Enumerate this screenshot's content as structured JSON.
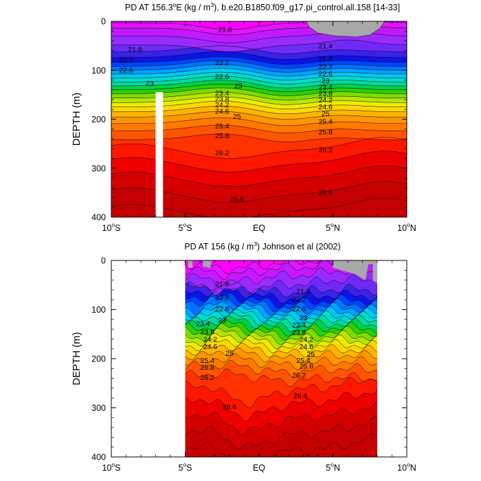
{
  "chart_data": [
    {
      "type": "contour",
      "title": "PD AT 156.3°E (kg / m³), b.e20.B1850.f09_g17.pi_control.all.158 [14-33]",
      "title_parts": {
        "pre": "PD AT 156.3",
        "deg": "o",
        "mid": "E (kg / m",
        "sup": "3",
        "post": "), b.e20.B1850.f09_g17.pi_control.all.158 [14-33]"
      },
      "ylabel": "DEPTH (m)",
      "xlim": [
        -10,
        10
      ],
      "ylim": [
        400,
        0
      ],
      "x_ticks": [
        {
          "v": -10,
          "num": "10",
          "deg": "o",
          "suf": "S"
        },
        {
          "v": -5,
          "num": "5",
          "deg": "o",
          "suf": "S"
        },
        {
          "v": 0,
          "num": "EQ",
          "deg": "",
          "suf": ""
        },
        {
          "v": 5,
          "num": "5",
          "deg": "o",
          "suf": "N"
        },
        {
          "v": 10,
          "num": "10",
          "deg": "o",
          "suf": "N"
        }
      ],
      "y_ticks": [
        {
          "v": 0,
          "label": "0"
        },
        {
          "v": 100,
          "label": "100"
        },
        {
          "v": 200,
          "label": "200"
        },
        {
          "v": 300,
          "label": "300"
        },
        {
          "v": 400,
          "label": "400"
        }
      ],
      "x_data_range": [
        -10,
        10
      ],
      "missing_band": [
        -7.0,
        -6.5
      ],
      "contour_labels": [
        {
          "text": "21.8",
          "x": -2.3,
          "y": 16
        },
        {
          "text": "21.4",
          "x": 4.5,
          "y": 50
        },
        {
          "text": "21.8",
          "x": -8.4,
          "y": 57
        },
        {
          "text": "21.8",
          "x": 4.5,
          "y": 76
        },
        {
          "text": "22.2",
          "x": -9.0,
          "y": 78
        },
        {
          "text": "22.2",
          "x": -2.5,
          "y": 84
        },
        {
          "text": "22.2",
          "x": 4.5,
          "y": 92
        },
        {
          "text": "22.6",
          "x": -9.0,
          "y": 99
        },
        {
          "text": "22.6",
          "x": 4.5,
          "y": 107
        },
        {
          "text": "22.6",
          "x": -2.5,
          "y": 112
        },
        {
          "text": "23",
          "x": 4.5,
          "y": 121
        },
        {
          "text": "23",
          "x": -7.4,
          "y": 126
        },
        {
          "text": "23",
          "x": -1.4,
          "y": 131
        },
        {
          "text": "23.4",
          "x": 4.5,
          "y": 134
        },
        {
          "text": "23.4",
          "x": -2.5,
          "y": 146
        },
        {
          "text": "23.8",
          "x": 4.5,
          "y": 147
        },
        {
          "text": "23.8",
          "x": -2.5,
          "y": 158
        },
        {
          "text": "24.2",
          "x": 4.5,
          "y": 160
        },
        {
          "text": "24.2",
          "x": -2.5,
          "y": 170
        },
        {
          "text": "24.6",
          "x": 4.5,
          "y": 174
        },
        {
          "text": "24.6",
          "x": -2.5,
          "y": 183
        },
        {
          "text": "25",
          "x": 4.5,
          "y": 188
        },
        {
          "text": "25",
          "x": -1.5,
          "y": 194
        },
        {
          "text": "25.4",
          "x": 4.5,
          "y": 204
        },
        {
          "text": "25.4",
          "x": -2.5,
          "y": 213
        },
        {
          "text": "25.8",
          "x": 4.5,
          "y": 225
        },
        {
          "text": "25.8",
          "x": -2.5,
          "y": 233
        },
        {
          "text": "26.2",
          "x": 4.5,
          "y": 262
        },
        {
          "text": "26.2",
          "x": -2.5,
          "y": 268
        },
        {
          "text": "26.6",
          "x": 4.5,
          "y": 349
        },
        {
          "text": "26.6",
          "x": -1.5,
          "y": 362
        }
      ]
    },
    {
      "type": "contour",
      "title": "PD AT 156 (kg / m³) Johnson et al (2002)",
      "title_parts": {
        "pre": "PD AT 156 (kg / m",
        "deg": "",
        "mid": "",
        "sup": "3",
        "post": ") Johnson et al (2002)"
      },
      "ylabel": "DEPTH (m)",
      "xlim": [
        -10,
        10
      ],
      "ylim": [
        400,
        0
      ],
      "x_ticks": [
        {
          "v": -10,
          "num": "10",
          "deg": "o",
          "suf": "S"
        },
        {
          "v": -5,
          "num": "5",
          "deg": "o",
          "suf": "S"
        },
        {
          "v": 0,
          "num": "EQ",
          "deg": "",
          "suf": ""
        },
        {
          "v": 5,
          "num": "5",
          "deg": "o",
          "suf": "N"
        },
        {
          "v": 10,
          "num": "10",
          "deg": "o",
          "suf": "N"
        }
      ],
      "y_ticks": [
        {
          "v": 0,
          "label": "0"
        },
        {
          "v": 100,
          "label": "100"
        },
        {
          "v": 200,
          "label": "200"
        },
        {
          "v": 300,
          "label": "300"
        },
        {
          "v": 400,
          "label": "400"
        }
      ],
      "x_data_range": [
        -5,
        8
      ],
      "contour_labels": [
        {
          "text": "21.8",
          "x": -2.5,
          "y": 47
        },
        {
          "text": "21.8",
          "x": 3.0,
          "y": 62
        },
        {
          "text": "22.2",
          "x": -2.5,
          "y": 75
        },
        {
          "text": "22.2",
          "x": 2.7,
          "y": 78
        },
        {
          "text": "22.6",
          "x": -2.5,
          "y": 98
        },
        {
          "text": "22.6",
          "x": 2.7,
          "y": 98
        },
        {
          "text": "23",
          "x": 3.0,
          "y": 116
        },
        {
          "text": "23",
          "x": -2.5,
          "y": 121
        },
        {
          "text": "23.4",
          "x": -3.8,
          "y": 128
        },
        {
          "text": "23.4",
          "x": 2.7,
          "y": 131
        },
        {
          "text": "23.8",
          "x": -3.5,
          "y": 145
        },
        {
          "text": "23.8",
          "x": 2.7,
          "y": 146
        },
        {
          "text": "24.2",
          "x": -3.3,
          "y": 160
        },
        {
          "text": "24.2",
          "x": 3.2,
          "y": 160
        },
        {
          "text": "24.6",
          "x": -3.3,
          "y": 175
        },
        {
          "text": "24.6",
          "x": 3.2,
          "y": 175
        },
        {
          "text": "25",
          "x": -2.0,
          "y": 188
        },
        {
          "text": "25",
          "x": 3.5,
          "y": 190
        },
        {
          "text": "25.4",
          "x": -3.5,
          "y": 203
        },
        {
          "text": "25.4",
          "x": 3.0,
          "y": 203
        },
        {
          "text": "25.8",
          "x": -3.5,
          "y": 217
        },
        {
          "text": "25.8",
          "x": 3.2,
          "y": 215
        },
        {
          "text": "26.2",
          "x": -3.5,
          "y": 238
        },
        {
          "text": "26.2",
          "x": 2.7,
          "y": 233
        },
        {
          "text": "26.6",
          "x": 2.8,
          "y": 275
        },
        {
          "text": "26.6",
          "x": -2.0,
          "y": 297
        }
      ]
    }
  ]
}
